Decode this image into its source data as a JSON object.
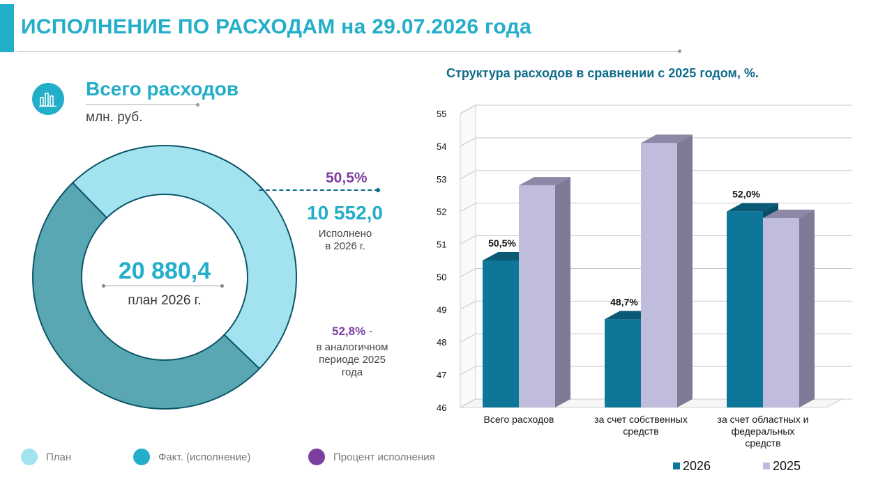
{
  "header": {
    "title": "ИСПОЛНЕНИЕ ПО РАСХОДАМ на 29.07.2026 года"
  },
  "summary": {
    "icon": "bar-chart-icon",
    "title": "Всего расходов",
    "unit": "млн. руб.",
    "plan_value": "20 880,4",
    "plan_caption": "план 2026 г.",
    "fact_percent": "50,5%",
    "fact_value": "10 552,0",
    "fact_caption_1": "Исполнено",
    "fact_caption_2": "в 2026 г.",
    "prev_percent": "52,8%",
    "prev_percent_suffix": " -",
    "prev_caption_1": "в аналогичном",
    "prev_caption_2": "периоде 2025",
    "prev_caption_3": "года"
  },
  "legend": [
    {
      "label": "План",
      "color": "#a3e3f0"
    },
    {
      "label": "Факт. (исполнение)",
      "color": "#23aec9"
    },
    {
      "label": "Процент исполнения",
      "color": "#7b3fa0"
    }
  ],
  "colors": {
    "accent": "#23aec9",
    "plan": "#a3e3f0",
    "fact": "#5aa7b4",
    "percent": "#7b3fa0",
    "series_2026": "#0e7799",
    "series_2025": "#c0bcdc"
  },
  "chart_data": [
    {
      "type": "pie",
      "variant": "donut",
      "categories": [
        "Исполнено",
        "План"
      ],
      "values": [
        10552.0,
        20880.4
      ],
      "fact_share": 0.505
    },
    {
      "type": "bar",
      "title": "Структура расходов в сравнении с 2025 годом, %.",
      "categories": [
        [
          "Всего расходов"
        ],
        [
          "за счет собственных",
          "средств"
        ],
        [
          "за счет областных и",
          "федеральных",
          "средств"
        ]
      ],
      "series": [
        {
          "name": "2026",
          "values": [
            50.5,
            48.7,
            52.0
          ],
          "labels": [
            "50,5%",
            "48,7%",
            "52,0%"
          ],
          "color": "#0e7799"
        },
        {
          "name": "2025",
          "values": [
            52.8,
            54.1,
            51.8
          ],
          "color": "#c0bcdc"
        }
      ],
      "ylim": [
        46,
        55
      ],
      "yticks": [
        "46",
        "47",
        "48",
        "49",
        "50",
        "51",
        "52",
        "53",
        "54",
        "55"
      ],
      "grid": true,
      "legend_position": "bottom-right"
    }
  ]
}
